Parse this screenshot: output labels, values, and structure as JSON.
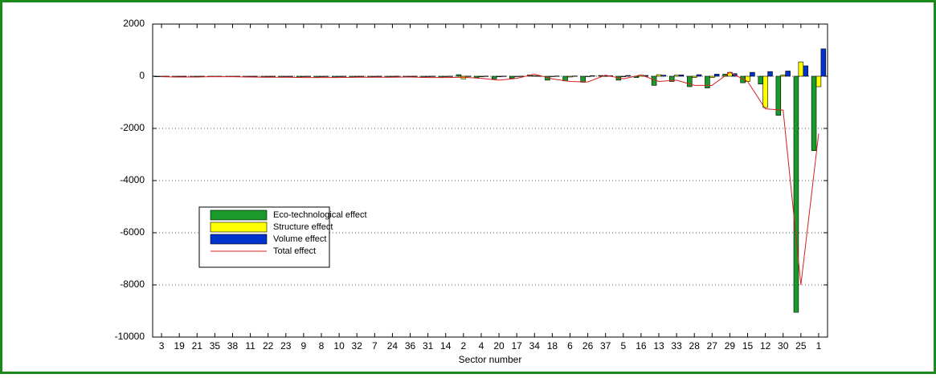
{
  "chart_data": {
    "type": "bar",
    "x_label": "Sector number",
    "categories": [
      "3",
      "19",
      "21",
      "35",
      "38",
      "11",
      "22",
      "23",
      "9",
      "8",
      "10",
      "32",
      "7",
      "24",
      "36",
      "31",
      "14",
      "2",
      "4",
      "20",
      "17",
      "34",
      "18",
      "6",
      "26",
      "37",
      "5",
      "16",
      "13",
      "33",
      "28",
      "27",
      "29",
      "15",
      "12",
      "30",
      "25",
      "1"
    ],
    "series": [
      {
        "name": "Eco-technological effect",
        "color": "#1a9a2a",
        "type": "bar",
        "values": [
          -20,
          -30,
          -30,
          -10,
          -20,
          -30,
          -40,
          -40,
          -50,
          -50,
          -50,
          -40,
          -40,
          -40,
          -30,
          -50,
          -50,
          60,
          -60,
          -100,
          -80,
          50,
          -150,
          -180,
          -230,
          30,
          -150,
          -50,
          -350,
          -200,
          -400,
          -450,
          80,
          -250,
          -300,
          -1500,
          -9050,
          -2850
        ]
      },
      {
        "name": "Structure effect",
        "color": "#ffff00",
        "type": "bar",
        "values": [
          -5,
          -5,
          -5,
          -5,
          -5,
          -5,
          -5,
          -5,
          -5,
          -5,
          -5,
          -5,
          -5,
          -5,
          -5,
          -5,
          -5,
          -100,
          -20,
          -20,
          -10,
          20,
          -10,
          -30,
          -10,
          10,
          -20,
          40,
          60,
          40,
          -50,
          -50,
          150,
          -200,
          -1200,
          50,
          550,
          -400
        ]
      },
      {
        "name": "Volume effect",
        "color": "#0033cc",
        "type": "bar",
        "values": [
          2,
          2,
          2,
          2,
          2,
          2,
          2,
          2,
          2,
          2,
          2,
          2,
          3,
          3,
          3,
          3,
          5,
          5,
          5,
          5,
          5,
          10,
          10,
          10,
          20,
          20,
          30,
          30,
          40,
          50,
          60,
          80,
          100,
          150,
          180,
          200,
          400,
          1050
        ]
      },
      {
        "name": "Total effect",
        "color": "#d42020",
        "type": "line",
        "values": [
          -20,
          -30,
          -30,
          -15,
          -20,
          -30,
          -40,
          -40,
          -50,
          -50,
          -50,
          -40,
          -40,
          -40,
          -30,
          -50,
          -50,
          -40,
          -80,
          -150,
          -80,
          80,
          -100,
          -200,
          -220,
          40,
          -100,
          50,
          -200,
          -150,
          -350,
          -350,
          150,
          -200,
          -1250,
          -1300,
          -8000,
          -2200
        ]
      }
    ],
    "ylim": [
      -10000,
      2000
    ],
    "yticks": [
      -10000,
      -8000,
      -6000,
      -4000,
      -2000,
      0,
      2000
    ],
    "grid": true,
    "legend": "center left"
  }
}
